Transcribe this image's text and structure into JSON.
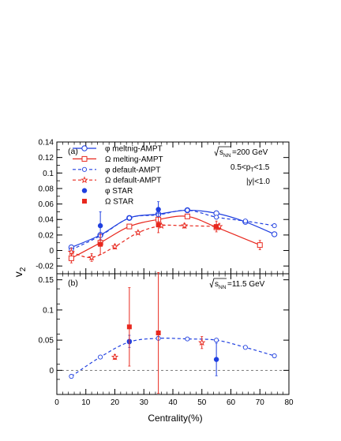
{
  "chart_data": [
    {
      "panel": "(a)",
      "type": "line",
      "energy_label": "200 GeV",
      "cuts": [
        "0.5<p_T<1.5",
        "|y|<1.0"
      ],
      "xlabel": "Centrality(%)",
      "ylabel": "v_2",
      "xlim": [
        0,
        80
      ],
      "ylim": [
        -0.03,
        0.14
      ],
      "yticks": [
        -0.02,
        0,
        0.02,
        0.04,
        0.06,
        0.08,
        0.1,
        0.12,
        0.14
      ],
      "legend_position": "top-left",
      "series": [
        {
          "name": "φ meltnig-AMPT",
          "color": "#1f3fe0",
          "style": "solid",
          "marker": "open-circle",
          "x": [
            5,
            15,
            25,
            35,
            45,
            55,
            65,
            75
          ],
          "y": [
            0.004,
            0.02,
            0.042,
            0.047,
            0.052,
            0.048,
            0.037,
            0.021
          ],
          "err": [
            0.003,
            0.003,
            0.002,
            0.002,
            0.002,
            0.002,
            0.002,
            0.002
          ]
        },
        {
          "name": "Ω melting-AMPT",
          "color": "#e8281e",
          "style": "solid",
          "marker": "open-square",
          "x": [
            5,
            15,
            25,
            35,
            45,
            55,
            70
          ],
          "y": [
            -0.01,
            0.01,
            0.031,
            0.04,
            0.044,
            0.03,
            0.007
          ],
          "err": [
            0.006,
            0.004,
            0.002,
            0.002,
            0.002,
            0.003,
            0.006
          ]
        },
        {
          "name": "φ default-AMPT",
          "color": "#1f3fe0",
          "style": "dashed",
          "marker": "open-circle-small",
          "x": [
            5,
            15,
            25,
            35,
            45,
            55,
            65,
            75
          ],
          "y": [
            0.001,
            0.019,
            0.042,
            0.046,
            0.052,
            0.043,
            0.038,
            0.032
          ],
          "err": [
            0.002,
            0.002,
            0.002,
            0.002,
            0.002,
            0.002,
            0.002,
            0.002
          ]
        },
        {
          "name": "Ω default-AMPT",
          "color": "#e8281e",
          "style": "dashed",
          "marker": "open-star",
          "x": [
            5,
            12,
            20,
            28,
            36,
            44,
            56
          ],
          "y": [
            -0.002,
            -0.009,
            0.005,
            0.023,
            0.032,
            0.032,
            0.031
          ],
          "err": [
            0.005,
            0.005,
            0.003,
            0.002,
            0.002,
            0.003,
            0.004
          ]
        },
        {
          "name": "φ STAR",
          "color": "#1f3fe0",
          "style": "none",
          "marker": "filled-circle",
          "x": [
            15,
            35
          ],
          "y": [
            0.032,
            0.053
          ],
          "err": [
            0.018,
            0.01
          ]
        },
        {
          "name": "Ω STAR",
          "color": "#e8281e",
          "style": "none",
          "marker": "filled-square",
          "x": [
            15,
            35,
            55
          ],
          "y": [
            0.008,
            0.033,
            0.031
          ],
          "err": [
            0.013,
            0.01,
            0.007
          ]
        }
      ]
    },
    {
      "panel": "(b)",
      "type": "line",
      "energy_label": "11.5 GeV",
      "xlabel": "Centrality(%)",
      "ylabel": "v_2",
      "xlim": [
        0,
        80
      ],
      "ylim": [
        -0.04,
        0.16
      ],
      "yticks": [
        0,
        0.05,
        0.1,
        0.15
      ],
      "xticks": [
        0,
        10,
        20,
        30,
        40,
        50,
        60,
        70,
        80
      ],
      "reference_line_y": 0,
      "series": [
        {
          "name": "φ default-AMPT",
          "color": "#1f3fe0",
          "style": "dashed",
          "marker": "open-circle-small",
          "x": [
            5,
            15,
            25,
            35,
            45,
            55,
            65,
            75
          ],
          "y": [
            -0.01,
            0.022,
            0.047,
            0.053,
            0.052,
            0.05,
            0.038,
            0.024
          ],
          "err": [
            0.003,
            0.002,
            0.002,
            0.002,
            0.002,
            0.002,
            0.002,
            0.002
          ]
        },
        {
          "name": "Ω default-AMPT",
          "color": "#e8281e",
          "style": "none",
          "marker": "open-star",
          "x": [
            20,
            50
          ],
          "y": [
            0.022,
            0.046
          ],
          "err": [
            0.004,
            0.01
          ]
        },
        {
          "name": "φ STAR",
          "color": "#1f3fe0",
          "style": "none",
          "marker": "filled-circle",
          "x": [
            25,
            55
          ],
          "y": [
            0.048,
            0.018
          ],
          "err": [
            0.01,
            0.027
          ]
        },
        {
          "name": "Ω STAR",
          "color": "#e8281e",
          "style": "none",
          "marker": "filled-square",
          "x": [
            25,
            35
          ],
          "y": [
            0.072,
            0.062
          ],
          "err": [
            0.065,
            0.1
          ]
        }
      ]
    }
  ]
}
